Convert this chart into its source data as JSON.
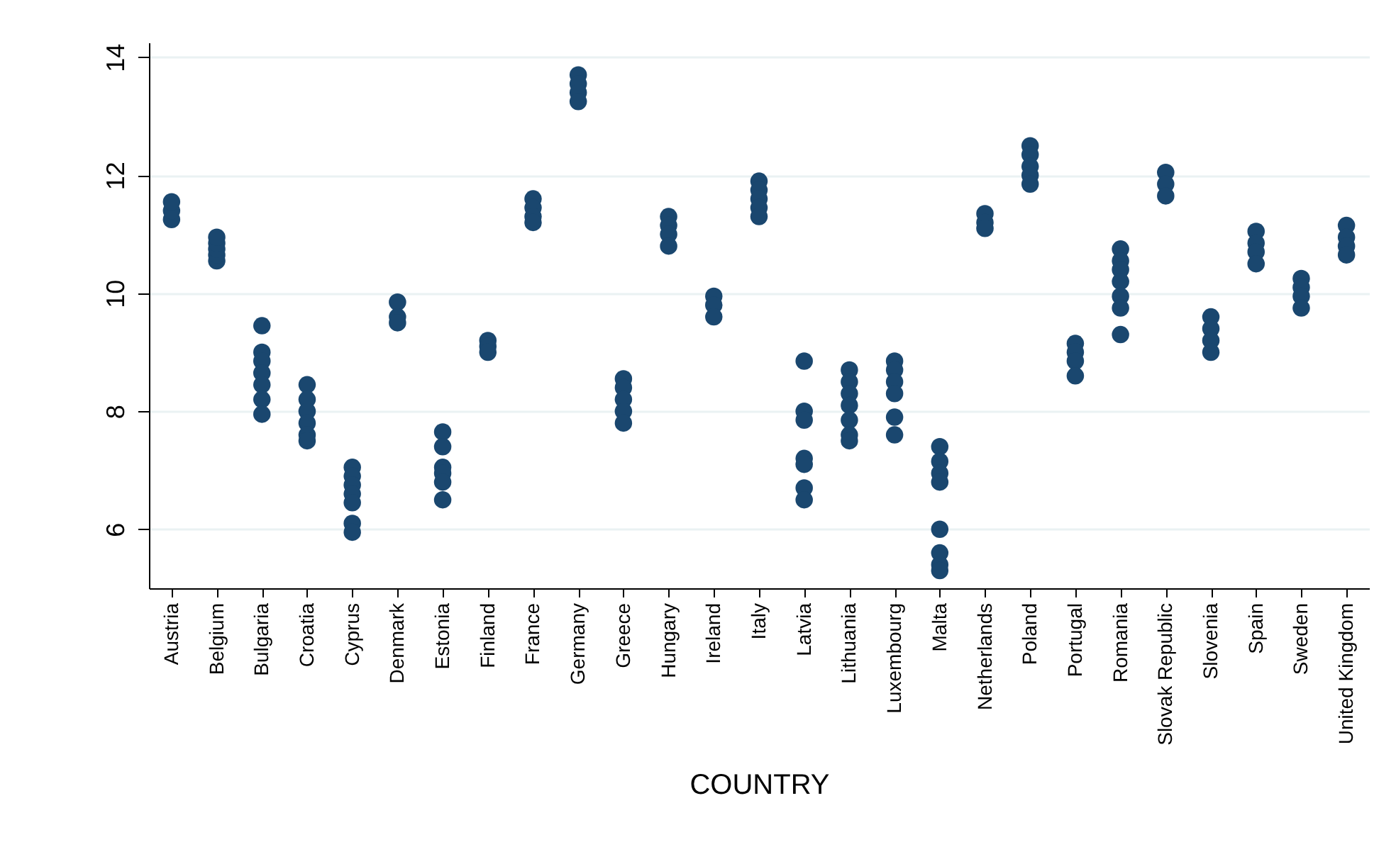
{
  "chart_data": {
    "type": "scatter",
    "xlabel": "COUNTRY",
    "categories": [
      "Austria",
      "Belgium",
      "Bulgaria",
      "Croatia",
      "Cyprus",
      "Denmark",
      "Estonia",
      "Finland",
      "France",
      "Germany",
      "Greece",
      "Hungary",
      "Ireland",
      "Italy",
      "Latvia",
      "Lithuania",
      "Luxembourg",
      "Malta",
      "Netherlands",
      "Poland",
      "Portugal",
      "Romania",
      "Slovak Republic",
      "Slovenia",
      "Spain",
      "Sweden",
      "United Kingdom"
    ],
    "series": [
      {
        "color": "#1a476f",
        "x": [
          "Austria",
          "Austria",
          "Austria",
          "Belgium",
          "Belgium",
          "Belgium",
          "Belgium",
          "Belgium",
          "Bulgaria",
          "Bulgaria",
          "Bulgaria",
          "Bulgaria",
          "Bulgaria",
          "Bulgaria",
          "Bulgaria",
          "Croatia",
          "Croatia",
          "Croatia",
          "Croatia",
          "Croatia",
          "Croatia",
          "Cyprus",
          "Cyprus",
          "Cyprus",
          "Cyprus",
          "Cyprus",
          "Cyprus",
          "Cyprus",
          "Denmark",
          "Denmark",
          "Denmark",
          "Estonia",
          "Estonia",
          "Estonia",
          "Estonia",
          "Estonia",
          "Estonia",
          "Finland",
          "Finland",
          "Finland",
          "France",
          "France",
          "France",
          "France",
          "Germany",
          "Germany",
          "Germany",
          "Germany",
          "Greece",
          "Greece",
          "Greece",
          "Greece",
          "Greece",
          "Hungary",
          "Hungary",
          "Hungary",
          "Hungary",
          "Ireland",
          "Ireland",
          "Ireland",
          "Italy",
          "Italy",
          "Italy",
          "Italy",
          "Italy",
          "Latvia",
          "Latvia",
          "Latvia",
          "Latvia",
          "Latvia",
          "Latvia",
          "Latvia",
          "Lithuania",
          "Lithuania",
          "Lithuania",
          "Lithuania",
          "Lithuania",
          "Lithuania",
          "Lithuania",
          "Luxembourg",
          "Luxembourg",
          "Luxembourg",
          "Luxembourg",
          "Luxembourg",
          "Luxembourg",
          "Malta",
          "Malta",
          "Malta",
          "Malta",
          "Malta",
          "Malta",
          "Malta",
          "Malta",
          "Netherlands",
          "Netherlands",
          "Netherlands",
          "Poland",
          "Poland",
          "Poland",
          "Poland",
          "Poland",
          "Portugal",
          "Portugal",
          "Portugal",
          "Portugal",
          "Romania",
          "Romania",
          "Romania",
          "Romania",
          "Romania",
          "Romania",
          "Romania",
          "Slovak Republic",
          "Slovak Republic",
          "Slovak Republic",
          "Slovenia",
          "Slovenia",
          "Slovenia",
          "Slovenia",
          "Spain",
          "Spain",
          "Spain",
          "Spain",
          "Sweden",
          "Sweden",
          "Sweden",
          "Sweden",
          "United Kingdom",
          "United Kingdom",
          "United Kingdom",
          "United Kingdom"
        ],
        "values": [
          11.25,
          11.4,
          11.55,
          10.55,
          10.65,
          10.75,
          10.85,
          10.95,
          9.45,
          9.0,
          8.85,
          8.65,
          8.45,
          8.2,
          7.95,
          8.45,
          8.2,
          8.0,
          7.8,
          7.6,
          7.5,
          7.05,
          6.9,
          6.75,
          6.6,
          6.45,
          6.1,
          5.95,
          9.85,
          9.6,
          9.5,
          7.65,
          7.4,
          7.05,
          6.95,
          6.8,
          6.5,
          9.2,
          9.1,
          9.0,
          11.6,
          11.45,
          11.3,
          11.2,
          13.7,
          13.55,
          13.4,
          13.25,
          8.55,
          8.4,
          8.2,
          8.0,
          7.8,
          11.3,
          11.15,
          11.0,
          10.8,
          9.95,
          9.8,
          9.6,
          11.9,
          11.75,
          11.6,
          11.45,
          11.3,
          8.85,
          8.0,
          7.85,
          7.2,
          7.1,
          6.7,
          6.5,
          8.7,
          8.5,
          8.3,
          8.1,
          7.85,
          7.6,
          7.5,
          8.85,
          8.7,
          8.5,
          8.3,
          7.9,
          7.6,
          7.4,
          7.15,
          6.95,
          6.8,
          6.0,
          5.6,
          5.4,
          5.3,
          11.35,
          11.2,
          11.1,
          12.5,
          12.35,
          12.15,
          12.0,
          11.85,
          9.15,
          9.0,
          8.85,
          8.6,
          10.75,
          10.55,
          10.4,
          10.2,
          9.95,
          9.75,
          9.3,
          12.05,
          11.85,
          11.65,
          9.6,
          9.4,
          9.2,
          9.0,
          11.05,
          10.85,
          10.7,
          10.5,
          10.25,
          10.1,
          9.95,
          9.75,
          11.15,
          10.95,
          10.8,
          10.65
        ]
      }
    ],
    "ylim": [
      5,
      14.25
    ],
    "yticks": [
      6,
      8,
      10,
      12,
      14
    ],
    "grid": "y",
    "marker": "circle"
  }
}
